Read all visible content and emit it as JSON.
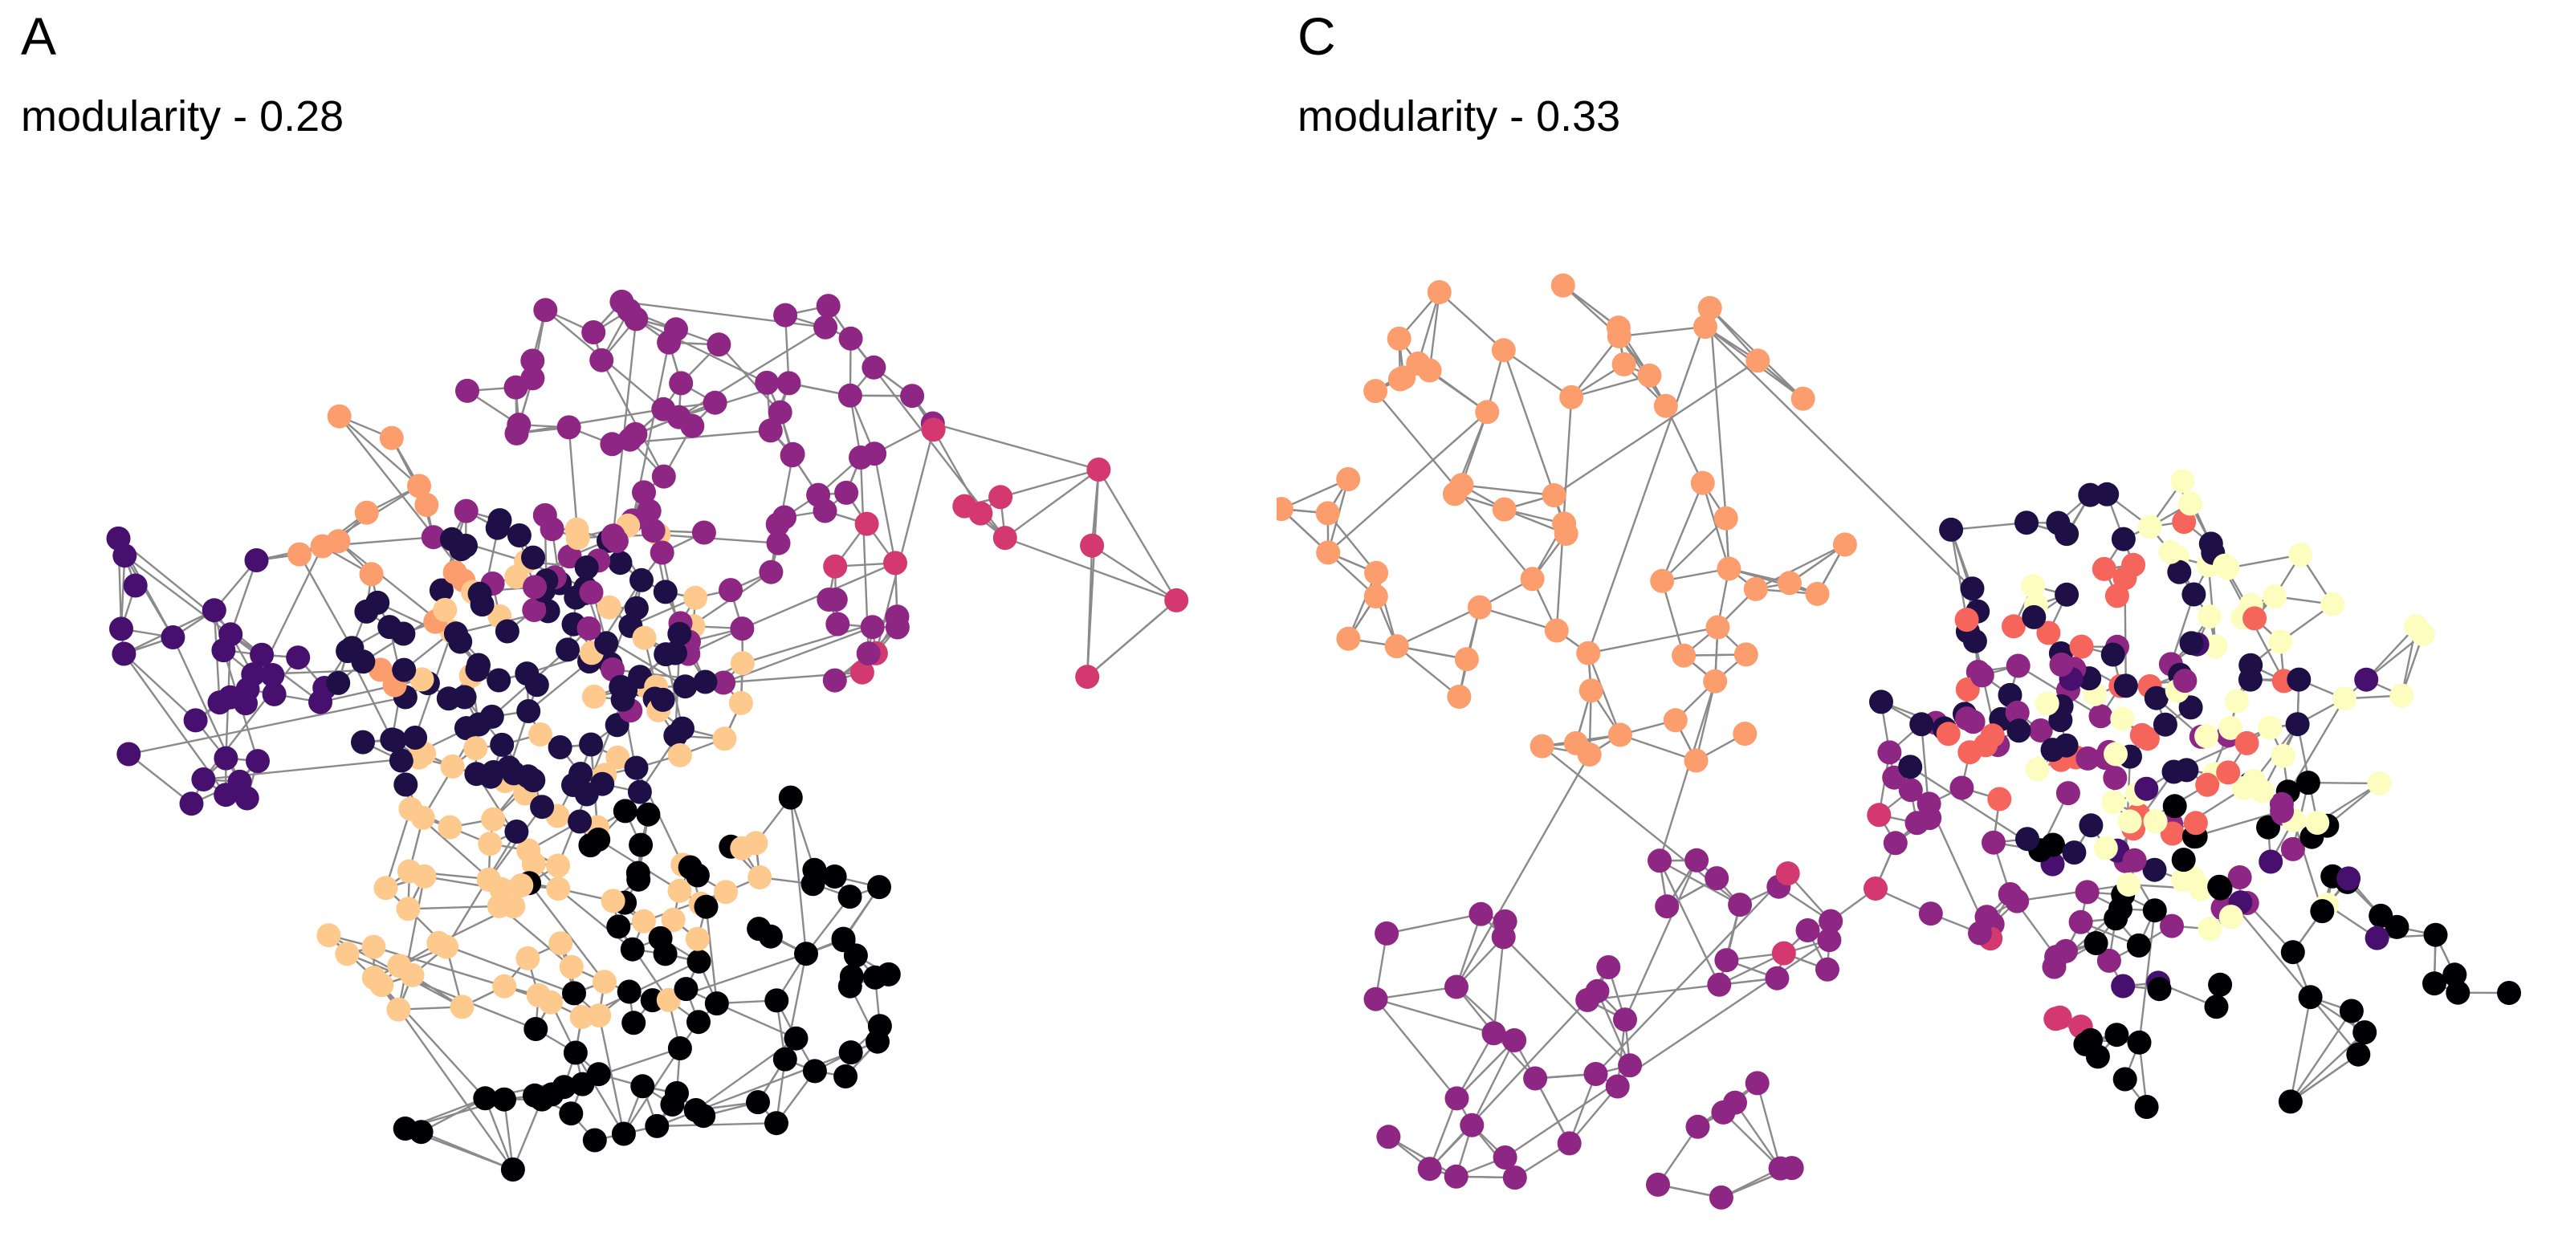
{
  "panels": [
    {
      "letter": "A",
      "caption": "modularity - 0.28",
      "modularity": 0.28,
      "communities": [
        "#000004",
        "#1e1046",
        "#47106e",
        "#8e2783",
        "#d3386f",
        "#f6655c",
        "#fb9d6c",
        "#fec98d",
        "#fcfdbf"
      ]
    },
    {
      "letter": "C",
      "caption": "modularity - 0.33",
      "modularity": 0.33,
      "communities": [
        "#000004",
        "#1e1046",
        "#47106e",
        "#8e2783",
        "#d3386f",
        "#f6655c",
        "#fb9d6c",
        "#fcfdbf"
      ]
    }
  ],
  "colors": {
    "edge": "#8a8a8a",
    "background": "#ffffff"
  }
}
